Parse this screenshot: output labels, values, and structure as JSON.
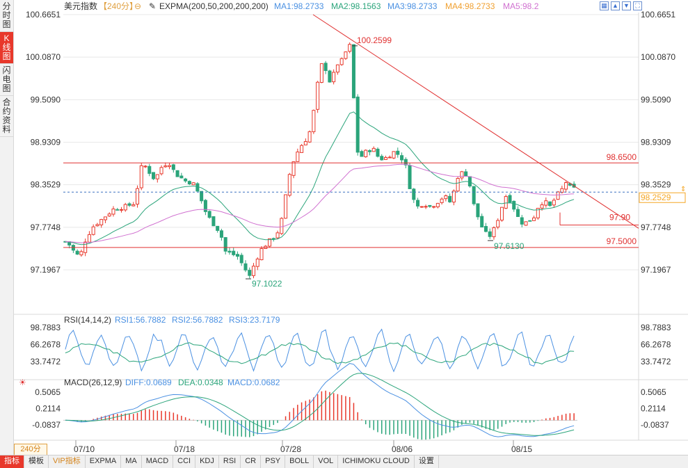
{
  "side_tabs": [
    {
      "label": "分时图",
      "active": false
    },
    {
      "label": "K线图",
      "active": true
    },
    {
      "label": "闪电图",
      "active": false
    },
    {
      "label": "合约资料",
      "active": false
    }
  ],
  "header": {
    "symbol": "美元指数",
    "period": "【240分】",
    "indicator": "EXPMA(200,50,200,200,200)",
    "ma1": "MA1:98.2733",
    "ma2": "MA2:98.1563",
    "ma3": "MA3:98.2733",
    "ma4": "MA4:98.2733",
    "ma5": "MA5:98.2"
  },
  "colors": {
    "up": "#e8382b",
    "down": "#2aa47a",
    "ma1": "#4a90e2",
    "ma2": "#2aa47a",
    "ma3": "#4a90e2",
    "ma4": "#f0a030",
    "ma5": "#d070d0",
    "red_line": "#e03030",
    "grid": "#e8e8e8",
    "current": "#3a70c0",
    "current_box": "#f5a623"
  },
  "price_axis": {
    "ticks": [
      "100.6651",
      "100.0870",
      "99.5090",
      "98.9309",
      "98.3529",
      "97.7748",
      "97.1967"
    ],
    "current_price": "98.2529"
  },
  "annotations": {
    "high": "100.2599",
    "low": "97.1022",
    "low2": "97.6130",
    "level_1": "98.6500",
    "level_2": "97.90",
    "level_3": "97.5000"
  },
  "rsi": {
    "label": "RSI(14,14,2)",
    "rsi1": "RSI1:56.7882",
    "rsi2": "RSI2:56.7882",
    "rsi3": "RSI3:23.7179",
    "ticks": [
      "98.7883",
      "66.2678",
      "33.7472"
    ]
  },
  "macd": {
    "label": "MACD(26,12,9)",
    "diff": "DIFF:0.0689",
    "dea": "DEA:0.0348",
    "macd": "MACD:0.0682",
    "ticks": [
      "0.5065",
      "0.2114",
      "-0.0837"
    ]
  },
  "date_axis": [
    "07/10",
    "07/18",
    "07/28",
    "08/06",
    "08/15"
  ],
  "period_label": "240分",
  "bottom_tabs": [
    {
      "label": "指标",
      "sel": true
    },
    {
      "label": "模板",
      "sel": false
    },
    {
      "label": "VIP指标",
      "sel": false,
      "vip": true
    },
    {
      "label": "EXPMA",
      "sel": false
    },
    {
      "label": "MA",
      "sel": false
    },
    {
      "label": "MACD",
      "sel": false
    },
    {
      "label": "CCI",
      "sel": false
    },
    {
      "label": "KDJ",
      "sel": false
    },
    {
      "label": "RSI",
      "sel": false
    },
    {
      "label": "CR",
      "sel": false
    },
    {
      "label": "PSY",
      "sel": false
    },
    {
      "label": "BOLL",
      "sel": false
    },
    {
      "label": "VOL",
      "sel": false
    },
    {
      "label": "ICHIMOKU CLOUD",
      "sel": false
    },
    {
      "label": "设置",
      "sel": false
    }
  ],
  "top_icons": [
    "image-icon",
    "chevron-up-icon",
    "chevron-down-icon",
    "fullscreen-icon"
  ]
}
